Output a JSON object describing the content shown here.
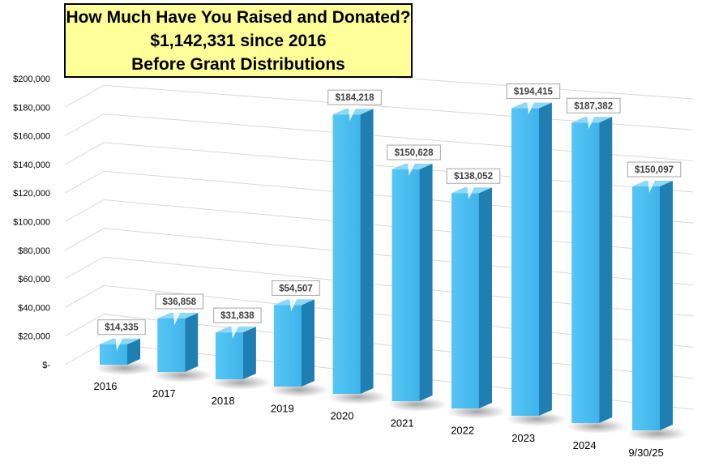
{
  "chart_data": {
    "type": "bar",
    "title_lines": [
      "How Much Have You Raised and Donated?",
      "$1,142,331 since 2016",
      "Before Grant Distributions"
    ],
    "categories": [
      "2016",
      "2017",
      "2018",
      "2019",
      "2020",
      "2021",
      "2022",
      "2023",
      "2024",
      "9/30/25"
    ],
    "values": [
      14335,
      36858,
      31838,
      54507,
      184218,
      150628,
      138052,
      194415,
      187382,
      150097
    ],
    "data_labels": [
      "$14,335",
      "$36,858",
      "$31,838",
      "$54,507",
      "$184,218",
      "$150,628",
      "$138,052",
      "$194,415",
      "$187,382",
      "$150,097"
    ],
    "y_tick_labels": [
      "$-",
      "$20,000",
      "$40,000",
      "$60,000",
      "$80,000",
      "$100,000",
      "$120,000",
      "$140,000",
      "$160,000",
      "$180,000",
      "$200,000"
    ],
    "ylim": [
      0,
      200000
    ],
    "grid": true,
    "style": "3d-column",
    "colors": {
      "bar_front": "#47bdf2",
      "bar_side": "#1f7fb3",
      "bar_top": "#8dd8f7",
      "title_bg": "#ffff99",
      "gridline": "#d9d9d9"
    }
  }
}
